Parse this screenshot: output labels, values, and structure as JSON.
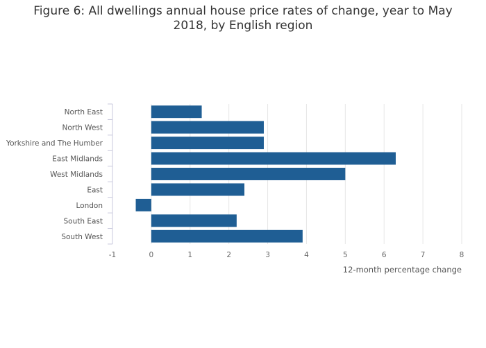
{
  "title_lines": [
    "Figure 6: All dwellings annual house price rates of change, year to May",
    "2018, by English region"
  ],
  "chart_data": {
    "type": "bar",
    "orientation": "horizontal",
    "title": "Figure 6: All dwellings annual house price rates of change, year to May 2018, by English region",
    "categories": [
      "North East",
      "North West",
      "Yorkshire and The Humber",
      "East Midlands",
      "West Midlands",
      "East",
      "London",
      "South East",
      "South West"
    ],
    "values": [
      1.3,
      2.9,
      2.9,
      6.3,
      5.0,
      2.4,
      -0.4,
      2.2,
      3.9
    ],
    "xlabel": "12-month percentage change",
    "ylabel": "",
    "xlim": [
      -1,
      8
    ],
    "xticks": [
      -1,
      0,
      1,
      2,
      3,
      4,
      5,
      6,
      7,
      8
    ],
    "grid": "vertical",
    "bar_color": "#1f5e94",
    "grid_color": "#e6e6e6",
    "axis_color": "#c8c8dc"
  }
}
